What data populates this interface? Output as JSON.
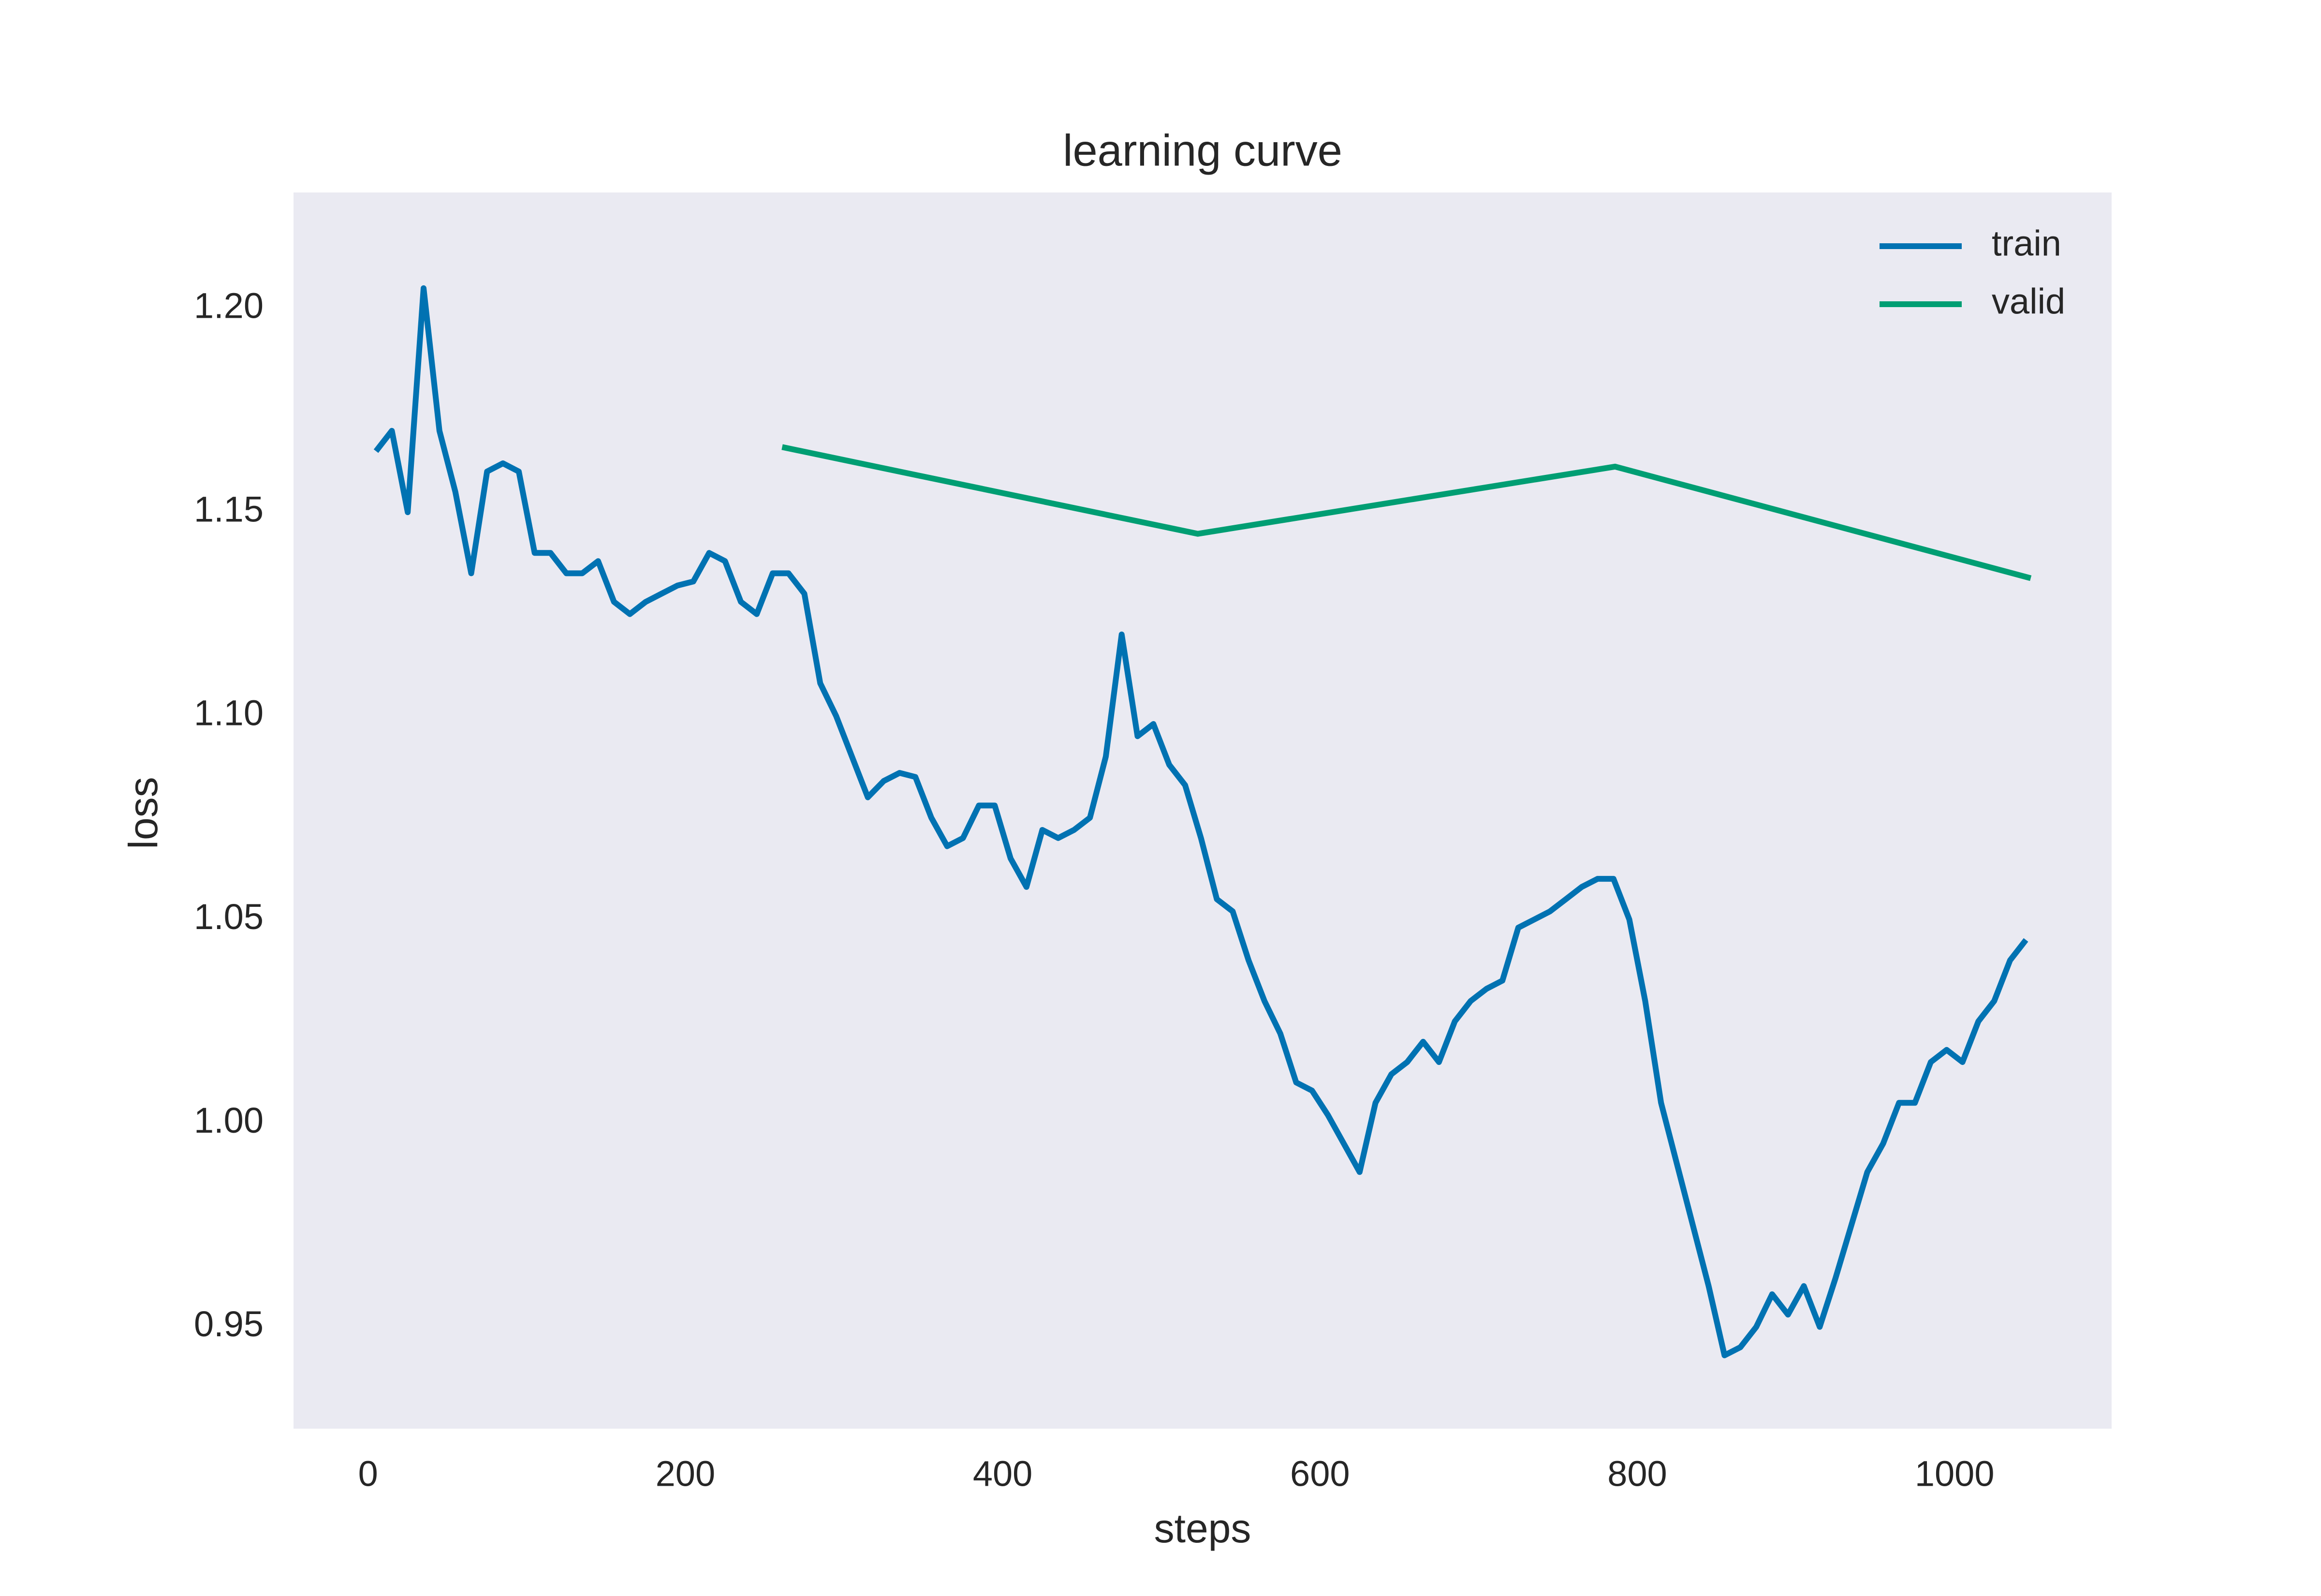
{
  "chart_data": {
    "type": "line",
    "title": "learning curve",
    "x_label": "steps",
    "y_label": "loss",
    "xlim": [
      -47,
      1099
    ],
    "ylim": [
      0.925,
      1.2285
    ],
    "xticks": [
      0,
      200,
      400,
      600,
      800,
      1000
    ],
    "yticks": [
      0.95,
      {
        "value": 1.0,
        "label": "1.00"
      },
      1.05,
      {
        "value": 1.1,
        "label": "1.10"
      },
      1.15,
      {
        "value": 1.2,
        "label": "1.20"
      }
    ],
    "grid": false,
    "legend": "upper right",
    "background": "#eaeaf2",
    "series": [
      {
        "name": "train",
        "color": "#0072b2",
        "x": [
          5,
          15,
          25,
          35,
          45,
          55,
          65,
          75,
          85,
          95,
          105,
          115,
          125,
          135,
          145,
          155,
          165,
          175,
          185,
          195,
          205,
          215,
          225,
          235,
          245,
          255,
          265,
          275,
          285,
          295,
          305,
          315,
          325,
          335,
          345,
          355,
          365,
          375,
          385,
          395,
          405,
          415,
          425,
          435,
          445,
          455,
          465,
          475,
          485,
          495,
          505,
          515,
          525,
          535,
          545,
          555,
          565,
          575,
          585,
          595,
          605,
          615,
          625,
          635,
          645,
          655,
          665,
          675,
          685,
          695,
          705,
          715,
          725,
          735,
          745,
          755,
          765,
          775,
          785,
          795,
          805,
          815,
          825,
          835,
          845,
          855,
          865,
          875,
          885,
          895,
          905,
          915,
          925,
          935,
          945,
          955,
          965,
          975,
          985,
          995,
          1005,
          1015,
          1025,
          1035,
          1045
        ],
        "values": [
          1.165,
          1.17,
          1.15,
          1.205,
          1.17,
          1.155,
          1.135,
          1.16,
          1.162,
          1.16,
          1.14,
          1.14,
          1.135,
          1.135,
          1.138,
          1.128,
          1.125,
          1.128,
          1.13,
          1.132,
          1.133,
          1.14,
          1.138,
          1.128,
          1.125,
          1.135,
          1.135,
          1.13,
          1.108,
          1.1,
          1.09,
          1.08,
          1.084,
          1.086,
          1.085,
          1.075,
          1.068,
          1.07,
          1.078,
          1.078,
          1.065,
          1.058,
          1.072,
          1.07,
          1.072,
          1.075,
          1.09,
          1.12,
          1.095,
          1.098,
          1.088,
          1.083,
          1.07,
          1.055,
          1.052,
          1.04,
          1.03,
          1.022,
          1.01,
          1.008,
          1.002,
          0.995,
          0.988,
          1.005,
          1.012,
          1.015,
          1.02,
          1.015,
          1.025,
          1.03,
          1.033,
          1.035,
          1.048,
          1.05,
          1.052,
          1.055,
          1.058,
          1.06,
          1.06,
          1.05,
          1.03,
          1.005,
          0.99,
          0.975,
          0.96,
          0.943,
          0.945,
          0.95,
          0.958,
          0.953,
          0.96,
          0.95,
          0.962,
          0.975,
          0.988,
          0.995,
          1.005,
          1.005,
          1.015,
          1.018,
          1.015,
          1.025,
          1.03,
          1.04,
          1.045
        ]
      },
      {
        "name": "valid",
        "color": "#009e73",
        "x": [
          261,
          523,
          786,
          1048
        ],
        "values": [
          1.166,
          1.1447,
          1.1612,
          1.1338
        ]
      }
    ]
  }
}
